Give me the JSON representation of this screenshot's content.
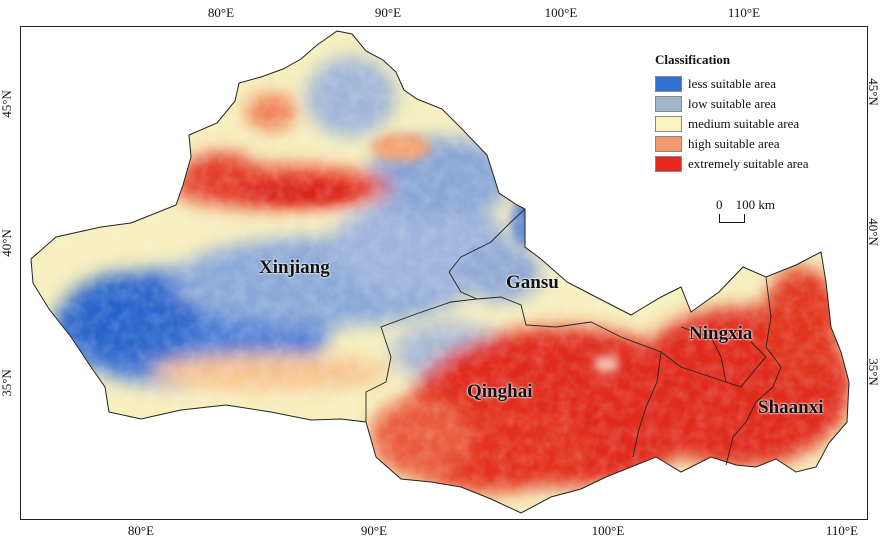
{
  "map": {
    "longitude_ticks": [
      "80°E",
      "90°E",
      "100°E",
      "110°E"
    ],
    "latitude_ticks": [
      "45°N",
      "40°N",
      "35°N"
    ],
    "regions": [
      "Xinjiang",
      "Gansu",
      "Qinghai",
      "Ningxia",
      "Shaanxi"
    ]
  },
  "legend": {
    "title": "Classification",
    "items": [
      {
        "label": "less suitable area",
        "color": "#2e6fd0"
      },
      {
        "label": "low suitable area",
        "color": "#9fb6c9"
      },
      {
        "label": "medium suitable area",
        "color": "#fbf3bf"
      },
      {
        "label": "high suitable area",
        "color": "#f39a6f"
      },
      {
        "label": "extremely suitable area",
        "color": "#e5291f"
      }
    ]
  },
  "scalebar": {
    "zero": "0",
    "label": "100 km"
  }
}
